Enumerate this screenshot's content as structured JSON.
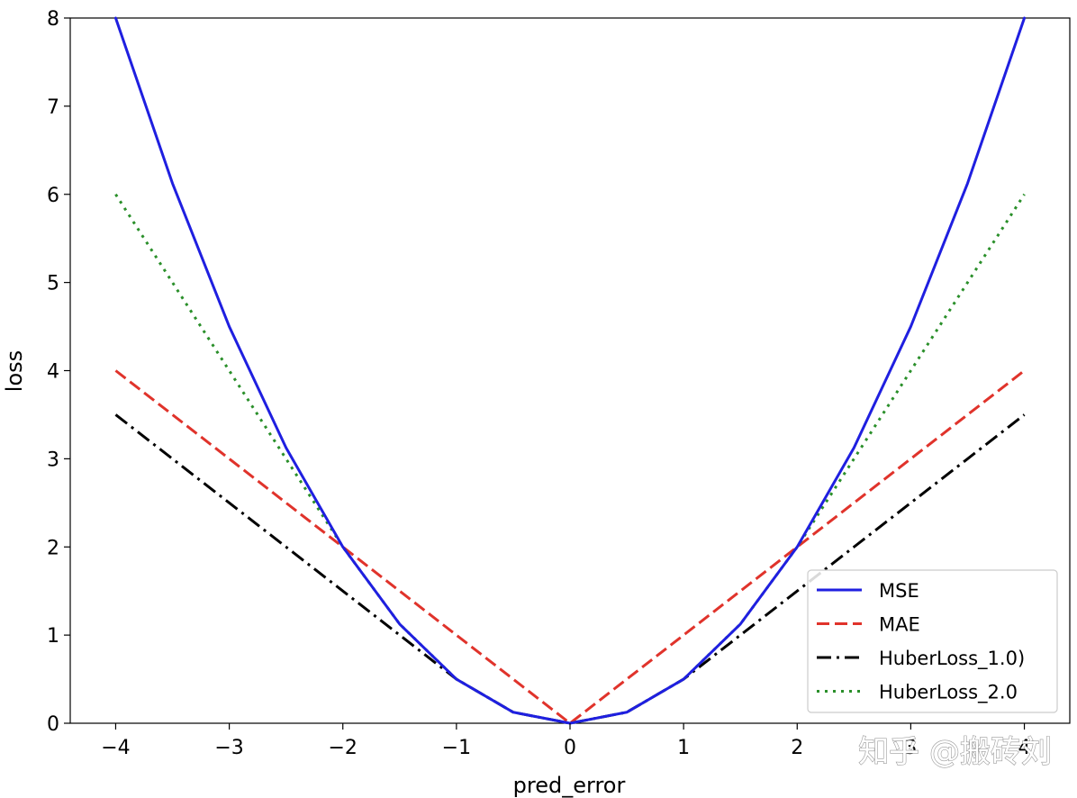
{
  "chart_data": {
    "type": "line",
    "title": "",
    "xlabel": "pred_error",
    "ylabel": "loss",
    "xlim": [
      -4.4,
      4.4
    ],
    "ylim": [
      0,
      8
    ],
    "xticks": [
      -4,
      -3,
      -2,
      -1,
      0,
      1,
      2,
      3,
      4
    ],
    "xtick_labels": [
      "−4",
      "−3",
      "−2",
      "−1",
      "0",
      "1",
      "2",
      "3",
      "4"
    ],
    "yticks": [
      0,
      1,
      2,
      3,
      4,
      5,
      6,
      7,
      8
    ],
    "ytick_labels": [
      "0",
      "1",
      "2",
      "3",
      "4",
      "5",
      "6",
      "7",
      "8"
    ],
    "grid": false,
    "legend_position": "lower-right",
    "x": [
      -4,
      -3.5,
      -3,
      -2.5,
      -2,
      -1.5,
      -1,
      -0.5,
      0,
      0.5,
      1,
      1.5,
      2,
      2.5,
      3,
      3.5,
      4
    ],
    "series": [
      {
        "name": "MSE",
        "color": "#1f1fe0",
        "style": "solid",
        "values": [
          8,
          6.125,
          4.5,
          3.125,
          2,
          1.125,
          0.5,
          0.125,
          0,
          0.125,
          0.5,
          1.125,
          2,
          3.125,
          4.5,
          6.125,
          8
        ]
      },
      {
        "name": "MAE",
        "color": "#e0332b",
        "style": "dashed",
        "values": [
          4,
          3.5,
          3,
          2.5,
          2,
          1.5,
          1,
          0.5,
          0,
          0.5,
          1,
          1.5,
          2,
          2.5,
          3,
          3.5,
          4
        ]
      },
      {
        "name": "HuberLoss_1.0)",
        "color": "#000000",
        "style": "dashdot",
        "values": [
          3.5,
          3,
          2.5,
          2,
          1.5,
          1,
          0.5,
          0.125,
          0,
          0.125,
          0.5,
          1,
          1.5,
          2,
          2.5,
          3,
          3.5
        ]
      },
      {
        "name": "HuberLoss_2.0",
        "color": "#2a8f2a",
        "style": "dotted",
        "values": [
          6,
          5,
          4,
          3,
          2,
          1.125,
          0.5,
          0.125,
          0,
          0.125,
          0.5,
          1.125,
          2,
          3,
          4,
          5,
          6
        ]
      }
    ]
  },
  "watermark": "知乎 @搬砖刘"
}
